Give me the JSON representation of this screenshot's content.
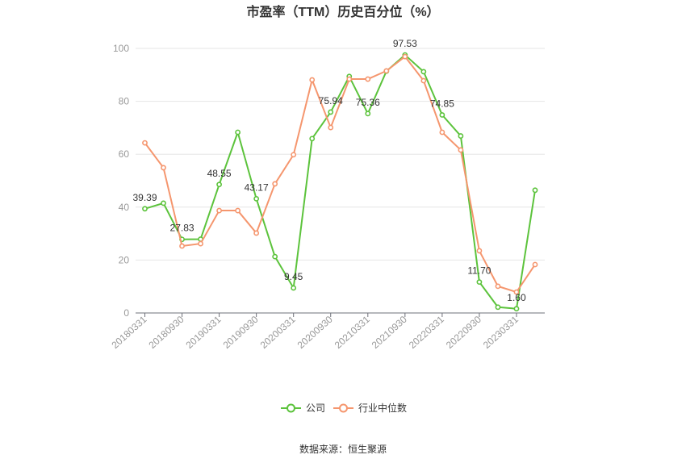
{
  "chart_data": {
    "type": "line",
    "title": "市盈率（TTM）历史百分位（%）",
    "x_tick_labels": [
      "20180331",
      "20180930",
      "20190331",
      "20190930",
      "20200331",
      "20200930",
      "20210331",
      "20210930",
      "20220331",
      "20220930",
      "20230331"
    ],
    "y_ticks": [
      0,
      20,
      40,
      60,
      80,
      100
    ],
    "ylim": [
      0,
      100
    ],
    "grid": true,
    "legend_position": "bottom",
    "series": [
      {
        "name": "公司",
        "color": "#5cc33c",
        "values": [
          39.39,
          41.5,
          27.83,
          27.9,
          48.55,
          68.3,
          43.17,
          21.3,
          9.45,
          65.9,
          75.94,
          89.4,
          75.36,
          91.4,
          97.53,
          91.2,
          74.85,
          66.9,
          11.7,
          2.2,
          1.6,
          46.4
        ],
        "point_labels": [
          "39.39",
          null,
          "27.83",
          null,
          "48.55",
          null,
          "43.17",
          null,
          "9.45",
          null,
          "75.94",
          null,
          "75.36",
          null,
          "97.53",
          null,
          "74.85",
          null,
          "11.70",
          null,
          "1.60",
          null
        ]
      },
      {
        "name": "行业中位数",
        "color": "#f5966e",
        "values": [
          64.3,
          54.9,
          25.3,
          26.2,
          38.7,
          38.7,
          30.2,
          48.8,
          59.8,
          88.1,
          70.1,
          88.4,
          88.4,
          91.5,
          96.9,
          87.8,
          68.3,
          61.6,
          23.5,
          10.1,
          7.9,
          18.3
        ]
      }
    ]
  },
  "source": "数据来源：恒生聚源"
}
